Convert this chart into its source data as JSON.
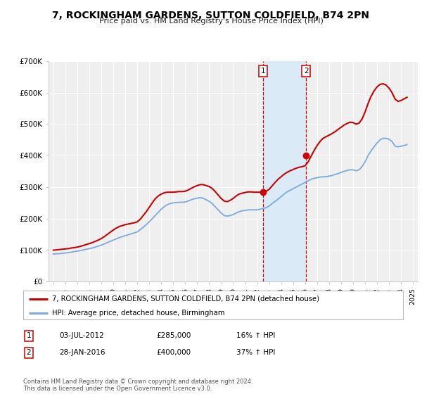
{
  "title": "7, ROCKINGHAM GARDENS, SUTTON COLDFIELD, B74 2PN",
  "subtitle": "Price paid vs. HM Land Registry's House Price Index (HPI)",
  "ylim": [
    0,
    700000
  ],
  "yticks": [
    0,
    100000,
    200000,
    300000,
    400000,
    500000,
    600000,
    700000
  ],
  "ytick_labels": [
    "£0",
    "£100K",
    "£200K",
    "£300K",
    "£400K",
    "£500K",
    "£600K",
    "£700K"
  ],
  "xlim_start": 1994.6,
  "xlim_end": 2025.4,
  "xticks": [
    1995,
    1996,
    1997,
    1998,
    1999,
    2000,
    2001,
    2002,
    2003,
    2004,
    2005,
    2006,
    2007,
    2008,
    2009,
    2010,
    2011,
    2012,
    2013,
    2014,
    2015,
    2016,
    2017,
    2018,
    2019,
    2020,
    2021,
    2022,
    2023,
    2024,
    2025
  ],
  "background_color": "#ffffff",
  "plot_bg_color": "#efefef",
  "grid_color": "#ffffff",
  "sale1_x": 2012.5,
  "sale1_y": 285000,
  "sale1_label": "1",
  "sale2_x": 2016.08,
  "sale2_y": 400000,
  "sale2_label": "2",
  "shade_color": "#daeaf7",
  "vline_color": "#cc0000",
  "dot_color": "#cc0000",
  "red_line_color": "#cc0000",
  "blue_line_color": "#7aaadd",
  "legend_label_red": "7, ROCKINGHAM GARDENS, SUTTON COLDFIELD, B74 2PN (detached house)",
  "legend_label_blue": "HPI: Average price, detached house, Birmingham",
  "note1_date": "03-JUL-2012",
  "note1_price": "£285,000",
  "note1_hpi": "16% ↑ HPI",
  "note2_date": "28-JAN-2016",
  "note2_price": "£400,000",
  "note2_hpi": "37% ↑ HPI",
  "footer": "Contains HM Land Registry data © Crown copyright and database right 2024.\nThis data is licensed under the Open Government Licence v3.0.",
  "hpi_data_x": [
    1995.0,
    1995.25,
    1995.5,
    1995.75,
    1996.0,
    1996.25,
    1996.5,
    1996.75,
    1997.0,
    1997.25,
    1997.5,
    1997.75,
    1998.0,
    1998.25,
    1998.5,
    1998.75,
    1999.0,
    1999.25,
    1999.5,
    1999.75,
    2000.0,
    2000.25,
    2000.5,
    2000.75,
    2001.0,
    2001.25,
    2001.5,
    2001.75,
    2002.0,
    2002.25,
    2002.5,
    2002.75,
    2003.0,
    2003.25,
    2003.5,
    2003.75,
    2004.0,
    2004.25,
    2004.5,
    2004.75,
    2005.0,
    2005.25,
    2005.5,
    2005.75,
    2006.0,
    2006.25,
    2006.5,
    2006.75,
    2007.0,
    2007.25,
    2007.5,
    2007.75,
    2008.0,
    2008.25,
    2008.5,
    2008.75,
    2009.0,
    2009.25,
    2009.5,
    2009.75,
    2010.0,
    2010.25,
    2010.5,
    2010.75,
    2011.0,
    2011.25,
    2011.5,
    2011.75,
    2012.0,
    2012.25,
    2012.5,
    2012.75,
    2013.0,
    2013.25,
    2013.5,
    2013.75,
    2014.0,
    2014.25,
    2014.5,
    2014.75,
    2015.0,
    2015.25,
    2015.5,
    2015.75,
    2016.0,
    2016.25,
    2016.5,
    2016.75,
    2017.0,
    2017.25,
    2017.5,
    2017.75,
    2018.0,
    2018.25,
    2018.5,
    2018.75,
    2019.0,
    2019.25,
    2019.5,
    2019.75,
    2020.0,
    2020.25,
    2020.5,
    2020.75,
    2021.0,
    2021.25,
    2021.5,
    2021.75,
    2022.0,
    2022.25,
    2022.5,
    2022.75,
    2023.0,
    2023.25,
    2023.5,
    2023.75,
    2024.0,
    2024.25,
    2024.5
  ],
  "hpi_data_y": [
    88000,
    88500,
    89000,
    90000,
    91000,
    92500,
    94000,
    95500,
    97000,
    99000,
    101000,
    103000,
    105000,
    107000,
    110000,
    113000,
    116000,
    120000,
    124000,
    128000,
    132000,
    136000,
    140000,
    143000,
    146000,
    149000,
    152000,
    155000,
    158000,
    165000,
    173000,
    181000,
    190000,
    200000,
    210000,
    220000,
    230000,
    238000,
    244000,
    248000,
    250000,
    251000,
    252000,
    252000,
    253000,
    256000,
    260000,
    263000,
    265000,
    267000,
    265000,
    260000,
    255000,
    248000,
    238000,
    228000,
    218000,
    210000,
    208000,
    210000,
    213000,
    218000,
    222000,
    225000,
    226000,
    228000,
    228000,
    228000,
    228000,
    230000,
    232000,
    235000,
    240000,
    248000,
    255000,
    262000,
    270000,
    278000,
    285000,
    290000,
    295000,
    300000,
    305000,
    310000,
    315000,
    320000,
    325000,
    328000,
    330000,
    332000,
    333000,
    333000,
    335000,
    337000,
    340000,
    343000,
    347000,
    350000,
    353000,
    355000,
    355000,
    352000,
    355000,
    365000,
    380000,
    400000,
    415000,
    428000,
    440000,
    450000,
    455000,
    455000,
    452000,
    445000,
    430000,
    428000,
    430000,
    432000,
    435000
  ],
  "price_paid_x": [
    1995.0,
    1995.25,
    1995.5,
    1995.75,
    1996.0,
    1996.25,
    1996.5,
    1996.75,
    1997.0,
    1997.25,
    1997.5,
    1997.75,
    1998.0,
    1998.25,
    1998.5,
    1998.75,
    1999.0,
    1999.25,
    1999.5,
    1999.75,
    2000.0,
    2000.25,
    2000.5,
    2000.75,
    2001.0,
    2001.25,
    2001.5,
    2001.75,
    2002.0,
    2002.25,
    2002.5,
    2002.75,
    2003.0,
    2003.25,
    2003.5,
    2003.75,
    2004.0,
    2004.25,
    2004.5,
    2004.75,
    2005.0,
    2005.25,
    2005.5,
    2005.75,
    2006.0,
    2006.25,
    2006.5,
    2006.75,
    2007.0,
    2007.25,
    2007.5,
    2007.75,
    2008.0,
    2008.25,
    2008.5,
    2008.75,
    2009.0,
    2009.25,
    2009.5,
    2009.75,
    2010.0,
    2010.25,
    2010.5,
    2010.75,
    2011.0,
    2011.25,
    2011.5,
    2011.75,
    2012.0,
    2012.25,
    2012.5,
    2012.75,
    2013.0,
    2013.25,
    2013.5,
    2013.75,
    2014.0,
    2014.25,
    2014.5,
    2014.75,
    2015.0,
    2015.25,
    2015.5,
    2015.75,
    2016.0,
    2016.25,
    2016.5,
    2016.75,
    2017.0,
    2017.25,
    2017.5,
    2017.75,
    2018.0,
    2018.25,
    2018.5,
    2018.75,
    2019.0,
    2019.25,
    2019.5,
    2019.75,
    2020.0,
    2020.25,
    2020.5,
    2020.75,
    2021.0,
    2021.25,
    2021.5,
    2021.75,
    2022.0,
    2022.25,
    2022.5,
    2022.75,
    2023.0,
    2023.25,
    2023.5,
    2023.75,
    2024.0,
    2024.25,
    2024.5
  ],
  "price_paid_y": [
    100000,
    101000,
    102000,
    103000,
    104000,
    105000,
    107000,
    108000,
    110000,
    112000,
    115000,
    118000,
    121000,
    124000,
    128000,
    132000,
    137000,
    143000,
    150000,
    157000,
    164000,
    170000,
    175000,
    178000,
    181000,
    183000,
    185000,
    187000,
    190000,
    198000,
    210000,
    222000,
    236000,
    250000,
    263000,
    272000,
    278000,
    282000,
    284000,
    284000,
    284000,
    285000,
    286000,
    286000,
    287000,
    291000,
    296000,
    301000,
    305000,
    308000,
    308000,
    305000,
    302000,
    296000,
    286000,
    275000,
    264000,
    256000,
    254000,
    258000,
    264000,
    272000,
    278000,
    281000,
    283000,
    285000,
    285000,
    284000,
    284000,
    284000,
    285000,
    287000,
    293000,
    304000,
    315000,
    325000,
    333000,
    341000,
    347000,
    352000,
    356000,
    360000,
    363000,
    365000,
    368000,
    380000,
    398000,
    416000,
    432000,
    445000,
    455000,
    460000,
    465000,
    470000,
    476000,
    483000,
    490000,
    497000,
    502000,
    506000,
    505000,
    500000,
    503000,
    516000,
    538000,
    565000,
    588000,
    605000,
    618000,
    626000,
    628000,
    624000,
    614000,
    600000,
    580000,
    572000,
    575000,
    580000,
    585000
  ]
}
